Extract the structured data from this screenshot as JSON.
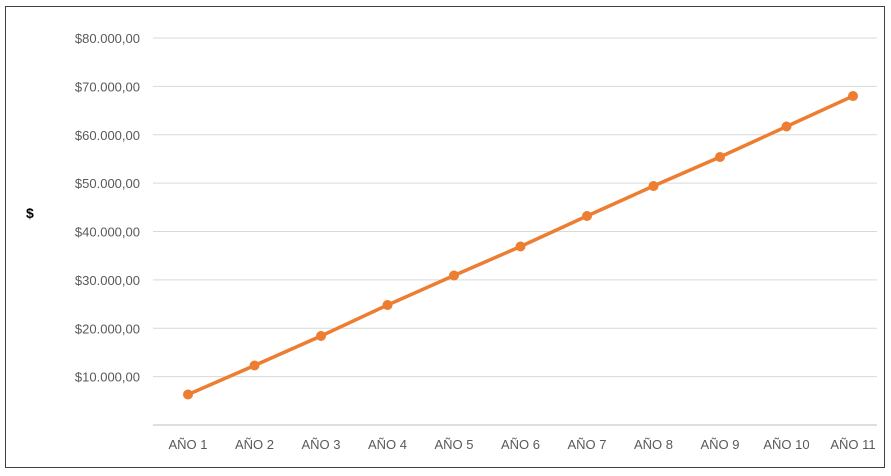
{
  "chart_data": {
    "type": "line",
    "categories": [
      "AÑO 1",
      "AÑO 2",
      "AÑO 3",
      "AÑO 4",
      "AÑO 5",
      "AÑO 6",
      "AÑO 7",
      "AÑO 8",
      "AÑO 9",
      "AÑO 10",
      "AÑO 11"
    ],
    "series": [
      {
        "values": [
          6300,
          12300,
          18400,
          24800,
          30900,
          36900,
          43200,
          49400,
          55400,
          61700,
          68000
        ]
      }
    ],
    "title": "",
    "xlabel": "",
    "ylabel": "$",
    "ylim": [
      0,
      80000
    ],
    "yticks": [
      10000,
      20000,
      30000,
      40000,
      50000,
      60000,
      70000,
      80000
    ],
    "ytick_labels": [
      "$10.000,00",
      "$20.000,00",
      "$30.000,00",
      "$40.000,00",
      "$50.000,00",
      "$60.000,00",
      "$70.000,00",
      "$80.000,00"
    ],
    "grid": true,
    "legend": "none",
    "colors": {
      "line": "#ED7D31",
      "grid": "#D9D9D9",
      "text": "#595959"
    }
  }
}
